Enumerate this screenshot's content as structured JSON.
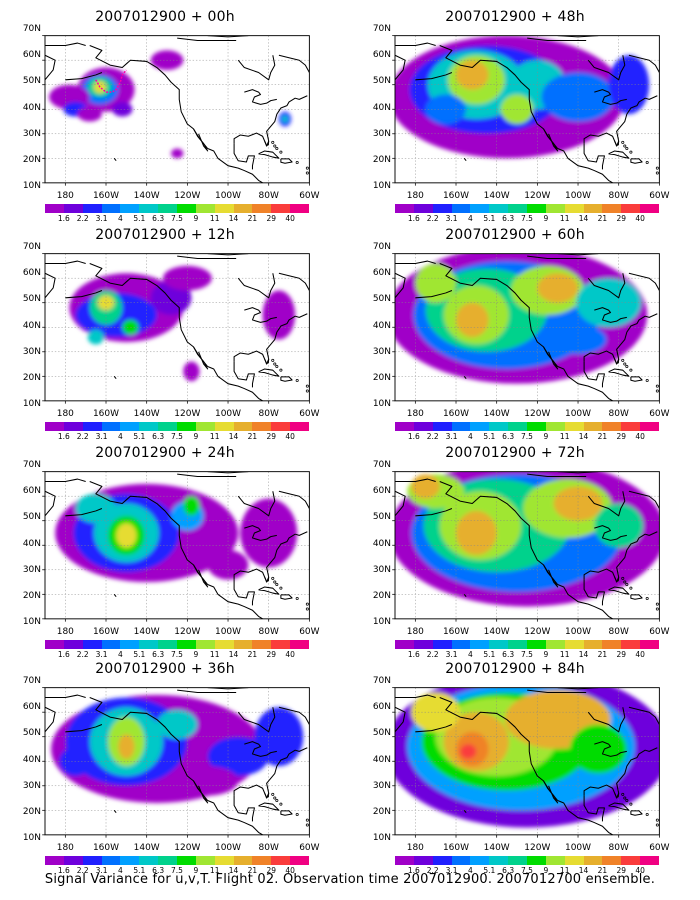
{
  "panels": [
    {
      "title": "2007012900 + 00h",
      "lead": "00h",
      "level_stage": 0
    },
    {
      "title": "2007012900 + 48h",
      "lead": "48h",
      "level_stage": 4
    },
    {
      "title": "2007012900 + 12h",
      "lead": "12h",
      "level_stage": 1
    },
    {
      "title": "2007012900 + 60h",
      "lead": "60h",
      "level_stage": 5
    },
    {
      "title": "2007012900 + 24h",
      "lead": "24h",
      "level_stage": 2
    },
    {
      "title": "2007012900 + 72h",
      "lead": "72h",
      "level_stage": 6
    },
    {
      "title": "2007012900 + 36h",
      "lead": "36h",
      "level_stage": 3
    },
    {
      "title": "2007012900 + 84h",
      "lead": "84h",
      "level_stage": 7
    }
  ],
  "axes": {
    "lat_labels": [
      "70N",
      "60N",
      "50N",
      "40N",
      "30N",
      "20N",
      "10N"
    ],
    "lon_labels": [
      "180",
      "160W",
      "140W",
      "120W",
      "100W",
      "80W",
      "60W"
    ]
  },
  "colorbar": {
    "labels": [
      "1.6",
      "2.2",
      "3.1",
      "4",
      "5.1",
      "6.3",
      "7.5",
      "9",
      "11",
      "14",
      "21",
      "29",
      "40"
    ],
    "colors": [
      "#a000c8",
      "#6e00dc",
      "#2020ff",
      "#0070ff",
      "#00a0ff",
      "#00c8c8",
      "#00d28c",
      "#00dc00",
      "#a0e632",
      "#e6dc32",
      "#e6af2d",
      "#f08228",
      "#fa3c3c",
      "#f00082"
    ]
  },
  "caption": "Signal Variance for u,v,T. Flight 02. Observation time 2007012900. 2007012700 ensemble.",
  "markers": {
    "flight_track_color": "#ff00aa"
  }
}
